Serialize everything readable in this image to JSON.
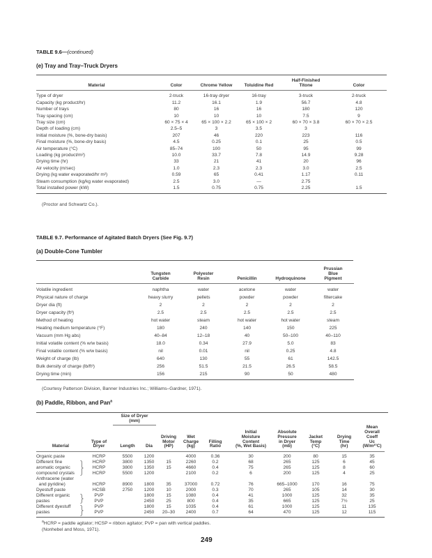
{
  "table96": {
    "title": "TABLE 9.6—",
    "title_cont": "(continued)",
    "section": "(e)  Tray and Tray–Truck Dryers",
    "headers": [
      "Material",
      "Color",
      "Chrome Yellow",
      "Toluidine Red",
      "Half-Finished\nTitone",
      "Color"
    ],
    "rows": [
      [
        "Type of dryer",
        "2-truck",
        "16-tray dryer",
        "16-tray",
        "3-truck",
        "2-truck"
      ],
      [
        "Capacity (kg product/hr)",
        "11.2",
        "16.1",
        "1.9",
        "56.7",
        "4.8"
      ],
      [
        "Number of trays",
        "80",
        "16",
        "16",
        "180",
        "120"
      ],
      [
        "Tray spacing (cm)",
        "10",
        "10",
        "10",
        "7.5",
        "9"
      ],
      [
        "Tray size (cm)",
        "60 × 75 × 4",
        "65 × 100 × 2.2",
        "65 × 100 × 2",
        "60 × 70 × 3.8",
        "60 × 70 × 2.5"
      ],
      [
        "Depth of loading (cm)",
        "2.5–5",
        "3",
        "3.5",
        "3",
        ""
      ],
      [
        "Initial moisture (%, bone-dry basis)",
        "207",
        "46",
        "220",
        "223",
        "116"
      ],
      [
        "Final moisture (%, bone-dry basis)",
        "4.5",
        "0.25",
        "0.1",
        "25",
        "0.5"
      ],
      [
        "Air temperature (°C)",
        "85–74",
        "100",
        "50",
        "95",
        "99"
      ],
      [
        "Loading (kg product/m²)",
        "10.0",
        "33.7",
        "7.8",
        "14.9",
        "9.28"
      ],
      [
        "Drying time (hr)",
        "33",
        "21",
        "41",
        "20",
        "96"
      ],
      [
        "Air velocity (m/sec)",
        "1.0",
        "2.3",
        "2.3",
        "3.0",
        "2.5"
      ],
      [
        "Drying (kg water evaporated/hr m²)",
        "0.59",
        "65",
        "0.41",
        "1.17",
        "0.11"
      ],
      [
        "Steam consumption (kg/kg water evaporated)",
        "2.5",
        "3.0",
        "—",
        "2.75",
        ""
      ],
      [
        "Total installed power (kW)",
        "1.5",
        "0.75",
        "0.75",
        "2.25",
        "1.5"
      ]
    ],
    "source": "(Proctor and Schwartz Co.)."
  },
  "table97": {
    "title": "TABLE 9.7.  Performance of Agitated Batch Dryers (See Fig. 9.7)",
    "section_a": "(a)  Double-Cone Tumbler",
    "headers_a": [
      "",
      "Tungsten\nCarbide",
      "Polyester\nResin",
      "Penicillin",
      "Hydroquinone",
      "Prussian\nBlue\nPigment"
    ],
    "rows_a": [
      [
        "Volatile ingredient",
        "naphtha",
        "water",
        "acetone",
        "water",
        "water"
      ],
      [
        "Physical nature of charge",
        "heavy slurry",
        "pellets",
        "powder",
        "powder",
        "filtercake"
      ],
      [
        "Dryer dia (ft)",
        "2",
        "2",
        "2",
        "2",
        "2"
      ],
      [
        "Dryer capacity (ft³)",
        "2.5",
        "2.5",
        "2.5",
        "2.5",
        "2.5"
      ],
      [
        "Method of heating",
        "hot water",
        "steam",
        "hot water",
        "hot water",
        "steam"
      ],
      [
        "Heating medium temperature (°F)",
        "180",
        "240",
        "140",
        "150",
        "225"
      ],
      [
        "Vacuum (mm Hg abs)",
        "40–84",
        "12–18",
        "40",
        "50–100",
        "40–110"
      ],
      [
        "Initial volatile content (% w/w basis)",
        "18.0",
        "0.34",
        "27.9",
        "5.0",
        "83"
      ],
      [
        "Final volatile content (% w/w basis)",
        "nil",
        "0.01",
        "nil",
        "0.25",
        "4.8"
      ],
      [
        "Weight of charge (lb)",
        "640",
        "130",
        "55",
        "61",
        "142.5"
      ],
      [
        "Bulk density of charge (lb/ft³)",
        "256",
        "51.5",
        "21.5",
        "26.5",
        "58.5"
      ],
      [
        "Drying time (min)",
        "156",
        "215",
        "90",
        "50",
        "480"
      ]
    ],
    "source_a": "(Courtesy Patterson Division, Banner Industries Inc.; Williams–Gardner, 1971).",
    "section_b": "(b)  Paddle, Ribbon, and Pan",
    "section_b_mark": "a",
    "size_group": "Size of Dryer\n(mm)",
    "headers_b": [
      "Material",
      "Type of\nDryer",
      "Length",
      "Dia",
      "Driving\nMotor\n(HP)",
      "Wet\nCharge\n(kg)",
      "Filling\nRatio",
      "Initial\nMoisture\nContent\n(%, Wet Basis)",
      "Absolute\nPressure\nin Dryer\n(mb)",
      "Jacket\nTemp\n(°C)",
      "Drying\nTime\n(hr)",
      "Mean\nOverall\nCoeff\nUc\n(W/m²°C)"
    ],
    "rows_b": [
      [
        "Organic paste",
        "HCRP",
        "5500",
        "1200",
        "",
        "4000",
        "0.36",
        "30",
        "200",
        "80",
        "15",
        "35"
      ],
      [
        "Different fine",
        "HCRP",
        "3800",
        "1350",
        "15",
        "2260",
        "0.2",
        "68",
        "265",
        "125",
        "6",
        "45"
      ],
      [
        "aromatic organic",
        "HCRP",
        "3800",
        "1350",
        "15",
        "4660",
        "0.4",
        "75",
        "265",
        "125",
        "8",
        "60"
      ],
      [
        "compound crystals",
        "HCRP",
        "5500",
        "1200",
        "",
        "2100",
        "0.2",
        "6",
        "200",
        "125",
        "4",
        "25"
      ],
      [
        "Anthracene (water\n  and pyridine)",
        "HCRP",
        "8900",
        "1800",
        "35",
        "37000",
        "0.72",
        "76",
        "665–1000",
        "170",
        "16",
        "75"
      ],
      [
        "Dyestuff paste",
        "HCSB",
        "2750",
        "1200",
        "10",
        "2000",
        "0.3",
        "70",
        "265",
        "105",
        "14",
        "30"
      ],
      [
        "Different organic",
        "PVP",
        "",
        "1800",
        "15",
        "1080",
        "0.4",
        "41",
        "1000",
        "125",
        "32",
        "35"
      ],
      [
        "pastes",
        "PVP",
        "",
        "2450",
        "25",
        "800",
        "0.4",
        "35",
        "665",
        "125",
        "7½",
        "25"
      ],
      [
        "Different dyestuff",
        "PVP",
        "",
        "1800",
        "15",
        "1035",
        "0.4",
        "61",
        "1000",
        "125",
        "11",
        "135"
      ],
      [
        "pastes",
        "PVP",
        "",
        "2450",
        "20–30",
        "2400",
        "0.7",
        "64",
        "470",
        "125",
        "12",
        "115"
      ]
    ],
    "footnote_mark": "a",
    "footnote": "HCRP = paddle agitator; HCSP = ribbon agitator; PVP = pan with vertical paddles.",
    "source_b": "(Nonhebel and Moss, 1971)."
  },
  "page_number": "249"
}
